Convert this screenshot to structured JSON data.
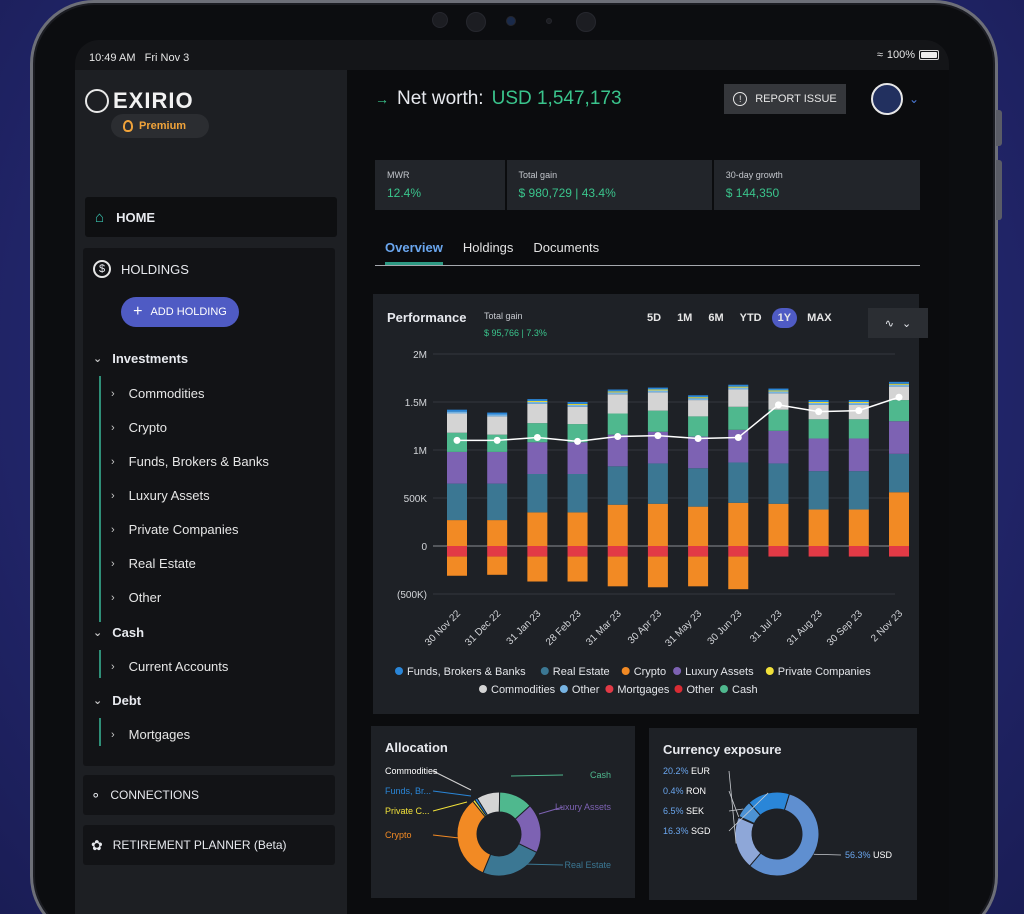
{
  "status_bar": {
    "time": "10:49 AM",
    "date": "Fri Nov 3",
    "battery": "100%"
  },
  "brand": {
    "name": "EXIRIO",
    "plan": "Premium"
  },
  "nav": {
    "home": "HOME",
    "holdings": "HOLDINGS",
    "add_holding": "ADD HOLDING",
    "groups": [
      {
        "label": "Investments",
        "items": [
          "Commodities",
          "Crypto",
          "Funds, Brokers & Banks",
          "Luxury Assets",
          "Private Companies",
          "Real Estate",
          "Other"
        ]
      },
      {
        "label": "Cash",
        "items": [
          "Current Accounts"
        ]
      },
      {
        "label": "Debt",
        "items": [
          "Mortgages"
        ]
      }
    ],
    "connections": "CONNECTIONS",
    "retirement": "RETIREMENT PLANNER (Beta)"
  },
  "header": {
    "networth_label": "Net worth:",
    "networth_value": "USD 1,547,173",
    "report_issue": "REPORT ISSUE"
  },
  "kpis": [
    {
      "label": "MWR",
      "value": "12.4%"
    },
    {
      "label": "Total gain",
      "value": "$ 980,729 | 43.4%"
    },
    {
      "label": "30-day growth",
      "value": "$ 144,350"
    }
  ],
  "tabs": [
    "Overview",
    "Holdings",
    "Documents"
  ],
  "performance": {
    "title": "Performance",
    "gain_label": "Total gain",
    "gain_value": "$ 95,766 | 7.3%",
    "ranges": [
      "5D",
      "1M",
      "6M",
      "YTD",
      "1Y",
      "MAX"
    ],
    "active_range": "1Y"
  },
  "colors": {
    "funds": "#2a86d8",
    "real_estate": "#3b7793",
    "crypto": "#f28a24",
    "luxury": "#7d62b3",
    "private": "#f1e13a",
    "commodities": "#d4d4d4",
    "other": "#76b3e2",
    "mortgages": "#e23a46",
    "other_debt": "#d92c34",
    "cash": "#4fb88e"
  },
  "chart_data": {
    "type": "bar",
    "stacked": true,
    "categories": [
      "30 Nov 22",
      "31 Dec 22",
      "31 Jan 23",
      "28 Feb 23",
      "31 Mar 23",
      "30 Apr 23",
      "31 May 23",
      "30 Jun 23",
      "31 Jul 23",
      "31 Aug 23",
      "30 Sep 23",
      "2 Nov 23"
    ],
    "y_ticks": [
      "2M",
      "1.5M",
      "1M",
      "500K",
      "0",
      "(500K)"
    ],
    "ylim": [
      -500000,
      2000000
    ],
    "series": [
      {
        "name": "Crypto",
        "values": [
          270000,
          270000,
          350000,
          350000,
          430000,
          440000,
          410000,
          450000,
          440000,
          380000,
          380000,
          560000
        ]
      },
      {
        "name": "Real Estate",
        "values": [
          380000,
          380000,
          400000,
          400000,
          400000,
          420000,
          400000,
          420000,
          420000,
          400000,
          400000,
          400000
        ]
      },
      {
        "name": "Luxury Assets",
        "values": [
          330000,
          330000,
          330000,
          330000,
          330000,
          330000,
          330000,
          340000,
          340000,
          340000,
          340000,
          340000
        ]
      },
      {
        "name": "Cash",
        "values": [
          200000,
          180000,
          200000,
          190000,
          220000,
          220000,
          210000,
          240000,
          220000,
          200000,
          200000,
          220000
        ]
      },
      {
        "name": "Commodities",
        "values": [
          200000,
          190000,
          200000,
          180000,
          200000,
          190000,
          170000,
          180000,
          170000,
          150000,
          150000,
          140000
        ]
      },
      {
        "name": "Other",
        "values": [
          20000,
          20000,
          20000,
          20000,
          20000,
          20000,
          20000,
          20000,
          20000,
          20000,
          20000,
          20000
        ]
      },
      {
        "name": "Private Companies",
        "values": [
          0,
          0,
          10000,
          10000,
          10000,
          10000,
          10000,
          10000,
          10000,
          10000,
          10000,
          10000
        ]
      },
      {
        "name": "Funds, Brokers & Banks",
        "values": [
          20000,
          20000,
          20000,
          20000,
          20000,
          20000,
          20000,
          20000,
          20000,
          20000,
          20000,
          20000
        ]
      },
      {
        "name": "Mortgages",
        "values": [
          -110000,
          -110000,
          -110000,
          -110000,
          -110000,
          -110000,
          -110000,
          -110000,
          -110000,
          -110000,
          -110000,
          -110000
        ]
      },
      {
        "name": "Other",
        "values": [
          -200000,
          -190000,
          -260000,
          -260000,
          -310000,
          -320000,
          -310000,
          -340000,
          0,
          0,
          0,
          0
        ]
      }
    ],
    "line": {
      "name": "Net worth",
      "values": [
        1100000,
        1100000,
        1130000,
        1090000,
        1140000,
        1150000,
        1120000,
        1130000,
        1470000,
        1400000,
        1410000,
        1550000
      ]
    },
    "legend": [
      {
        "name": "Funds, Brokers & Banks",
        "color": "#2a86d8"
      },
      {
        "name": "Real Estate",
        "color": "#3b7793"
      },
      {
        "name": "Crypto",
        "color": "#f28a24"
      },
      {
        "name": "Luxury Assets",
        "color": "#7d62b3"
      },
      {
        "name": "Private Companies",
        "color": "#f1e13a"
      },
      {
        "name": "Commodities",
        "color": "#d4d4d4"
      },
      {
        "name": "Other",
        "color": "#76b3e2"
      },
      {
        "name": "Mortgages",
        "color": "#e23a46"
      },
      {
        "name": "Other",
        "color": "#d92c34"
      },
      {
        "name": "Cash",
        "color": "#4fb88e"
      }
    ],
    "legend_placement": "bottom"
  },
  "allocation": {
    "title": "Allocation",
    "slices": [
      {
        "label": "Commodities",
        "value": 9,
        "color": "#d4d4d4"
      },
      {
        "label": "Cash",
        "value": 13,
        "color": "#4fb88e"
      },
      {
        "label": "Luxury Assets",
        "value": 19,
        "color": "#7d62b3"
      },
      {
        "label": "Real Estate",
        "value": 24,
        "color": "#3b7793"
      },
      {
        "label": "Crypto",
        "value": 33,
        "color": "#f28a24"
      },
      {
        "label": "Private C...",
        "value": 1,
        "color": "#f1e13a"
      },
      {
        "label": "Funds, Br...",
        "value": 1,
        "color": "#2a86d8"
      }
    ]
  },
  "currency": {
    "title": "Currency exposure",
    "slices": [
      {
        "pct": "20.2%",
        "code": "EUR",
        "value": 20.2,
        "color": "#8ea7d8"
      },
      {
        "pct": "0.4%",
        "code": "RON",
        "value": 0.4,
        "color": "#5a86c4"
      },
      {
        "pct": "6.5%",
        "code": "SEK",
        "value": 6.5,
        "color": "#4c92d3"
      },
      {
        "pct": "16.3%",
        "code": "SGD",
        "value": 16.3,
        "color": "#2a86d8"
      },
      {
        "pct": "56.3%",
        "code": "USD",
        "value": 56.3,
        "color": "#5f8fd0"
      }
    ]
  }
}
